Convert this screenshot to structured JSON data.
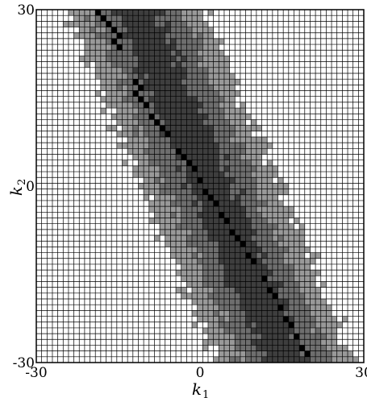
{
  "chart_data": {
    "type": "heatmap",
    "title": "",
    "xlabel": "k",
    "xlabel_sub": "1",
    "ylabel": "k",
    "ylabel_sub": "2",
    "xlim": [
      -30,
      30
    ],
    "ylim": [
      -30,
      30
    ],
    "x_ticks": [
      "-30",
      "0",
      "30"
    ],
    "y_ticks": [
      "30",
      "0",
      "-30"
    ],
    "grid": "every integer lattice site",
    "levels": [
      {
        "name": "0",
        "color": "#ffffff"
      },
      {
        "name": "1",
        "color": "#999999"
      },
      {
        "name": "2",
        "color": "#6e6e6e"
      },
      {
        "name": "3",
        "color": "#3e3e3e"
      },
      {
        "name": "4",
        "color": "#000000"
      }
    ],
    "band": {
      "slope": -0.46,
      "intercept_k1": 2.0,
      "band_level_widths": [
        13.0,
        8.5,
        4.0,
        1.2
      ]
    },
    "peak_sites": [
      [
        -19,
        30
      ],
      [
        -18,
        29
      ],
      [
        -17,
        28
      ],
      [
        -16,
        27
      ],
      [
        -15,
        26
      ],
      [
        -16,
        25
      ],
      [
        -15,
        24
      ],
      [
        -12,
        18
      ],
      [
        -11,
        17
      ],
      [
        -12,
        16
      ],
      [
        -11,
        15
      ],
      [
        -10,
        14
      ],
      [
        -9,
        12
      ],
      [
        -8,
        11
      ],
      [
        -7,
        10
      ],
      [
        -6,
        9
      ],
      [
        -4,
        6
      ],
      [
        -3,
        5
      ],
      [
        -2,
        4
      ],
      [
        -1,
        3
      ],
      [
        0,
        1
      ],
      [
        1,
        -1
      ],
      [
        2,
        -2
      ],
      [
        3,
        -3
      ],
      [
        4,
        -5
      ],
      [
        5,
        -6
      ],
      [
        6,
        -8
      ],
      [
        7,
        -9
      ],
      [
        8,
        -10
      ],
      [
        9,
        -12
      ],
      [
        10,
        -13
      ],
      [
        12,
        -16
      ],
      [
        13,
        -18
      ],
      [
        14,
        -19
      ],
      [
        15,
        -21
      ],
      [
        16,
        -23
      ],
      [
        17,
        -24
      ],
      [
        18,
        -26
      ],
      [
        19,
        -28
      ],
      [
        20,
        -29
      ]
    ]
  }
}
